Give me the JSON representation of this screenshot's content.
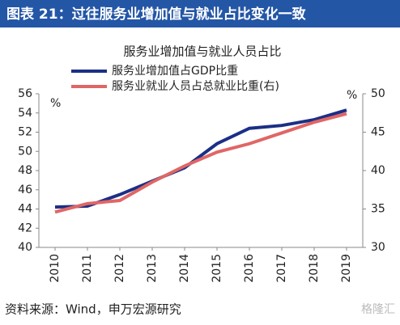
{
  "header": "图表 21：过往服务业增加值与就业占比变化一致",
  "chart_data": {
    "type": "line",
    "title": "服务业增加值与就业人员占比",
    "categories": [
      "2010",
      "2011",
      "2012",
      "2013",
      "2014",
      "2015",
      "2016",
      "2017",
      "2018",
      "2019"
    ],
    "series": [
      {
        "name": "服务业增加值占GDP比重",
        "color": "#1b2f86",
        "values": [
          44.2,
          44.3,
          45.5,
          46.9,
          48.3,
          50.8,
          52.4,
          52.7,
          53.3,
          54.3
        ]
      },
      {
        "name": "服务业就业人员占总就业比重(右)",
        "color": "#e06666",
        "axis": "y2",
        "values": [
          34.6,
          35.7,
          36.1,
          38.5,
          40.6,
          42.4,
          43.5,
          44.9,
          46.3,
          47.4
        ]
      }
    ],
    "ylim": [
      40,
      56
    ],
    "yticks": [
      40,
      42,
      44,
      46,
      48,
      50,
      52,
      54,
      56
    ],
    "ylabel": "%",
    "y2lim": [
      30,
      50
    ],
    "y2ticks": [
      30,
      35,
      40,
      45,
      50
    ],
    "y2label": "%",
    "legend": "top-left"
  },
  "source": "资料来源：Wind，申万宏源研究",
  "watermark": "格隆汇"
}
